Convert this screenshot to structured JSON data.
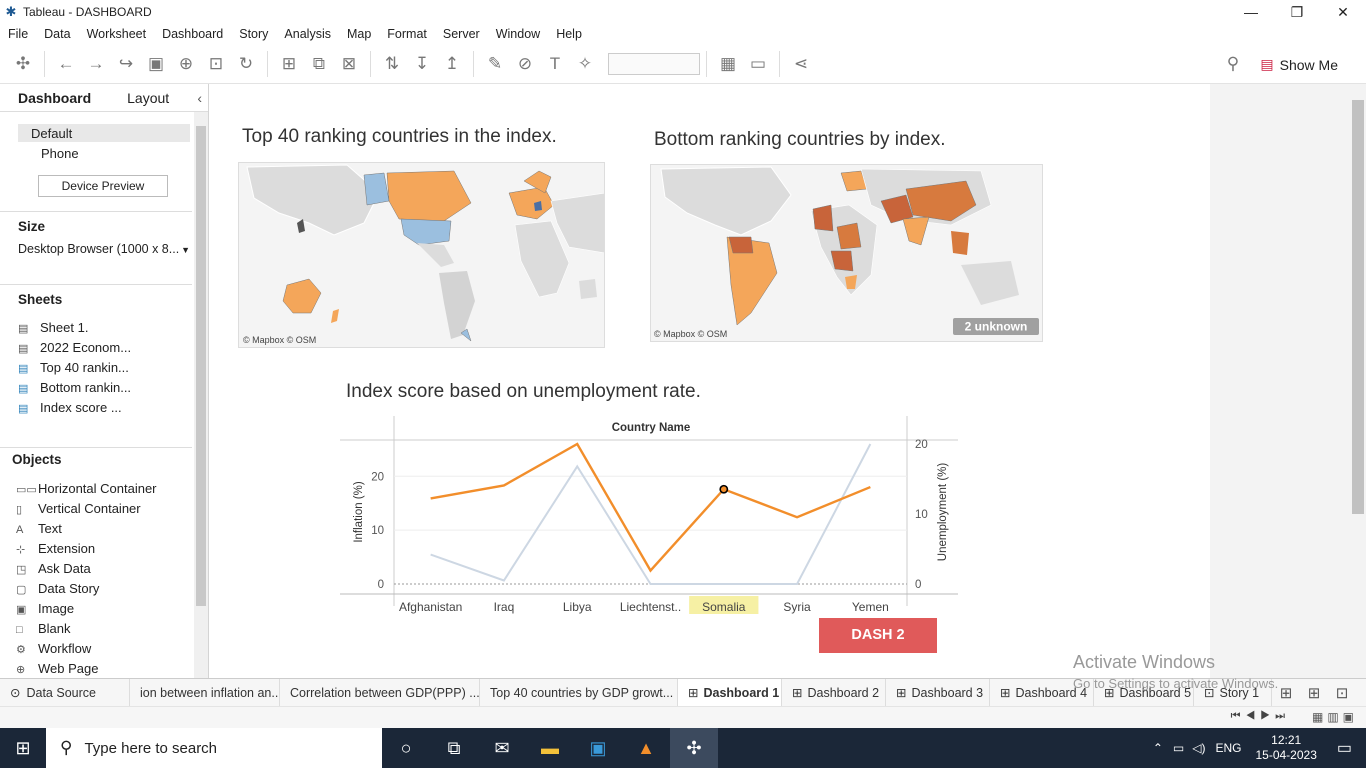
{
  "window": {
    "title": "Tableau - DASHBOARD",
    "minimize": "—",
    "restore": "❐",
    "close": "✕"
  },
  "menu": [
    "File",
    "Data",
    "Worksheet",
    "Dashboard",
    "Story",
    "Analysis",
    "Map",
    "Format",
    "Server",
    "Window",
    "Help"
  ],
  "toolbar": {
    "show_me": "Show Me"
  },
  "sidebar": {
    "tabs": [
      "Dashboard",
      "Layout"
    ],
    "devices": [
      "Default",
      "Phone"
    ],
    "device_preview": "Device Preview",
    "size_header": "Size",
    "size_value": "Desktop Browser (1000 x 8...",
    "sheets_header": "Sheets",
    "sheets": [
      "Sheet 1.",
      "2022 Econom...",
      "Top 40 rankin...",
      "Bottom rankin...",
      "Index score ..."
    ],
    "objects_header": "Objects",
    "objects": [
      {
        "icon": "▭▭",
        "label": "Horizontal Container"
      },
      {
        "icon": "▯",
        "label": "Vertical Container"
      },
      {
        "icon": "A",
        "label": "Text"
      },
      {
        "icon": "⊹",
        "label": "Extension"
      },
      {
        "icon": "◳",
        "label": "Ask Data"
      },
      {
        "icon": "▢",
        "label": "Data Story"
      },
      {
        "icon": "▣",
        "label": "Image"
      },
      {
        "icon": "□",
        "label": "Blank"
      },
      {
        "icon": "⚙",
        "label": "Workflow"
      },
      {
        "icon": "⊕",
        "label": "Web Page"
      }
    ]
  },
  "dashboard": {
    "top_title": "Top 40 ranking countries in the index.",
    "bottom_title": "Bottom ranking countries by index.",
    "map_credit": "© Mapbox © OSM",
    "unknown_badge": "2 unknown",
    "line_title": "Index score based on unemployment rate.",
    "dash_button": "DASH 2",
    "colors": {
      "orange": "#f28e2b",
      "light_blue": "#cdd7e3",
      "dash_red": "#e05a5a"
    }
  },
  "chart_data": {
    "type": "line",
    "header": "Country Name",
    "categories": [
      "Afghanistan",
      "Iraq",
      "Libya",
      "Liechtenst..",
      "Somalia",
      "Syria",
      "Yemen"
    ],
    "highlight": "Somalia",
    "ylabel_left": "Inflation (%)",
    "ylabel_right": "Unemployment (%)",
    "yticks_left": [
      "0",
      "10",
      "20"
    ],
    "yticks_right": [
      "0",
      "10",
      "20"
    ],
    "ylim_left": [
      0,
      26
    ],
    "ylim_right": [
      0,
      20
    ],
    "series": [
      {
        "axis": "left",
        "color": "#f28e2b",
        "values": [
          15.9,
          18.3,
          26.0,
          2.5,
          17.6,
          12.4,
          18.0
        ]
      },
      {
        "axis": "right",
        "color": "#cdd7e3",
        "values": [
          4.2,
          0.5,
          16.8,
          0.0,
          0.0,
          0.0,
          20.0
        ]
      }
    ]
  },
  "tabs": [
    "Data Source",
    "ion between inflation an...",
    "Correlation between GDP(PPP) ...",
    "Top 40 countries by GDP growt...",
    "Dashboard 1",
    "Dashboard 2",
    "Dashboard 3",
    "Dashboard 4",
    "Dashboard 5",
    "Story 1"
  ],
  "active_tab": "Dashboard 1",
  "watermark": [
    "Activate Windows",
    "Go to Settings to activate Windows."
  ],
  "taskbar": {
    "search": "Type here to search",
    "lang": "ENG",
    "time": "12:21",
    "date": "15-04-2023"
  }
}
